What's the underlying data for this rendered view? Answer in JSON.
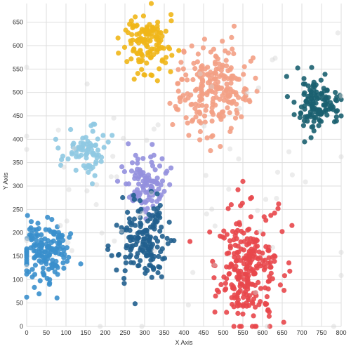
{
  "chart_data": {
    "type": "scatter",
    "title": "",
    "xlabel": "X Axis",
    "ylabel": "Y Axis",
    "xlim": [
      0,
      800
    ],
    "ylim": [
      0,
      690
    ],
    "xticks": [
      0,
      50,
      100,
      150,
      200,
      250,
      300,
      350,
      400,
      450,
      500,
      550,
      600,
      650,
      700,
      750,
      800
    ],
    "yticks": [
      0,
      50,
      100,
      150,
      200,
      250,
      300,
      350,
      400,
      450,
      500,
      550,
      600,
      650
    ],
    "grid": true,
    "legend": "none",
    "clusters": [
      {
        "color": "#f0b618",
        "center": [
          305,
          605
        ],
        "spread": [
          28,
          30
        ],
        "count": 130
      },
      {
        "color": "#f3a085",
        "center": [
          470,
          505
        ],
        "spread": [
          45,
          45
        ],
        "count": 230
      },
      {
        "color": "#1b6170",
        "center": [
          735,
          475
        ],
        "spread": [
          30,
          30
        ],
        "count": 130
      },
      {
        "color": "#8fc9e2",
        "center": [
          148,
          372
        ],
        "spread": [
          28,
          25
        ],
        "count": 75
      },
      {
        "color": "#9490de",
        "center": [
          305,
          305
        ],
        "spread": [
          28,
          30
        ],
        "count": 110
      },
      {
        "color": "#3a8fcc",
        "center": [
          45,
          160
        ],
        "spread": [
          32,
          32
        ],
        "count": 160
      },
      {
        "color": "#215f8e",
        "center": [
          300,
          180
        ],
        "spread": [
          30,
          42
        ],
        "count": 160
      },
      {
        "color": "#e8474b",
        "center": [
          560,
          120
        ],
        "spread": [
          40,
          62
        ],
        "count": 260
      },
      {
        "color": "#d4d4d4",
        "center": [
          400,
          340
        ],
        "spread": [
          230,
          180
        ],
        "count": 70
      }
    ]
  }
}
